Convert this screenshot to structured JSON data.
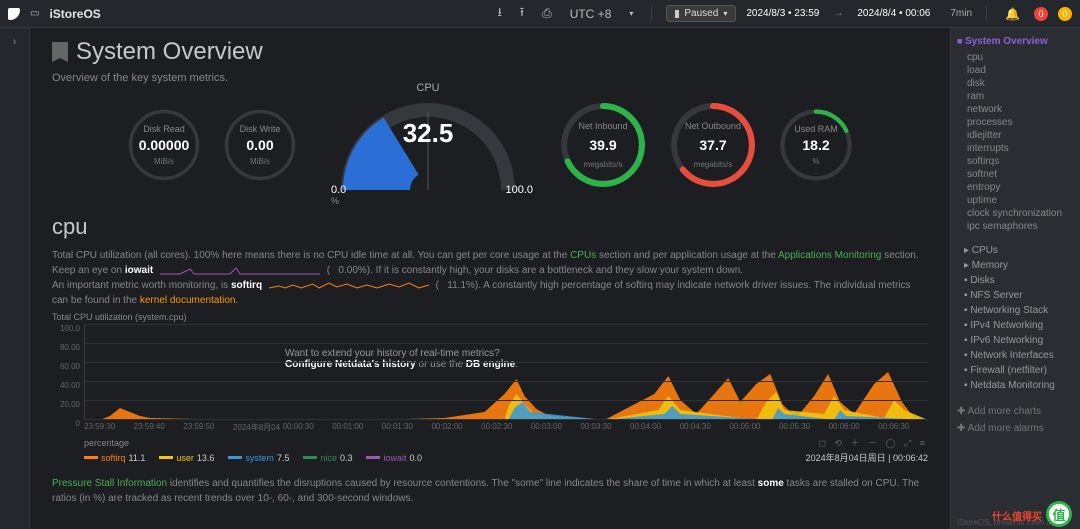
{
  "topbar": {
    "hostname": "iStoreOS",
    "tz_label": "UTC +8",
    "paused_label": "Paused",
    "time_from": "2024/8/3 • 23:59",
    "time_to": "2024/8/4 • 00:06",
    "duration": "7min",
    "alert_red": "0",
    "alert_yellow": "0"
  },
  "page": {
    "title": "System Overview",
    "subtitle": "Overview of the key system metrics."
  },
  "gauges": {
    "disk_read": {
      "label": "Disk Read",
      "value": "0.00000",
      "unit": "MiB/s",
      "pct": 2,
      "color": "#4a4d52"
    },
    "disk_write": {
      "label": "Disk Write",
      "value": "0.00",
      "unit": "MiB/s",
      "pct": 2,
      "color": "#4a4d52"
    },
    "cpu": {
      "label": "CPU",
      "value": "32.5",
      "min": "0.0",
      "max": "100.0",
      "pct": 32.5,
      "fill": "#2b6fd6"
    },
    "net_in": {
      "label": "Net Inbound",
      "value": "39.9",
      "unit": "megabits/s",
      "pct": 68,
      "color": "#2eb24a"
    },
    "net_out": {
      "label": "Net Outbound",
      "value": "37.7",
      "unit": "megabits/s",
      "pct": 64,
      "color": "#e84c3d"
    },
    "ram": {
      "label": "Used RAM",
      "value": "18.2",
      "unit": "%",
      "pct": 18,
      "color": "#2eb24a"
    }
  },
  "cpu_section": {
    "heading": "cpu",
    "text_prefix": "Total CPU utilization (all cores). 100% here means there is no CPU idle time at all. You can get per core usage at the ",
    "link_cpus": "CPUs",
    "text_mid1": " section and per application usage at the ",
    "link_apps": "Applications Monitoring",
    "text_suf1": " section.",
    "line2a": "Keep an eye on ",
    "iowait": "iowait",
    "iowait_val": "0.00%",
    "line2b": "). If it is constantly high, your disks are a bottleneck and they slow your system down.",
    "line3a": "An important metric worth monitoring, is ",
    "softirq": "softirq",
    "softirq_val": "11.1%",
    "line3b": "). A constantly high percentage of softirq may indicate network driver issues. The individual metrics can be found in the ",
    "kernel_docs": "kernel documentation",
    "chart_title": "Total CPU utilization (system.cpu)",
    "sparkline_iowait_color": "#9b59b6",
    "sparkline_softirq_color": "#ff7f0e"
  },
  "chart": {
    "ymax": 100,
    "ytick_step": 20,
    "yticks": [
      "100.0",
      "80.00",
      "60.00",
      "40.00",
      "20.00",
      "0"
    ],
    "xticks": [
      "23:59:30",
      "23:59:40",
      "23:59:50",
      "2024年8月04",
      "00:00:30",
      "00:01:00",
      "00:01:30",
      "00:02:00",
      "00:02:30",
      "00:03:00",
      "00:03:30",
      "00:04:00",
      "00:04:30",
      "00:05:00",
      "00:05:30",
      "00:06:00",
      "00:06:30"
    ],
    "overlay_q": "Want to extend your history of real-time metrics?",
    "overlay_a1": "Configure Netdata's ",
    "overlay_hist": "history",
    "overlay_a2": " or use the ",
    "overlay_db": "DB engine",
    "grid_color": "#2e3136",
    "series": [
      {
        "name": "nice",
        "color": "#2e8b57"
      },
      {
        "name": "user",
        "color": "#f1c40f"
      },
      {
        "name": "system",
        "color": "#3498db"
      },
      {
        "name": "softirq",
        "color": "#ff7f0e"
      },
      {
        "name": "iowait",
        "color": "#9b59b6"
      }
    ],
    "softirq_poly": "0,96 15,96 25,92 35,84 45,88 55,92 65,94 160,96 280,96 360,94 400,88 420,70 432,55 440,72 452,85 465,92 480,96 520,96 570,70 584,52 596,76 612,90 630,70 644,54 656,78 672,60 686,50 698,80 712,94 730,72 744,50 756,78 770,90 790,60 804,48 818,78 830,94 844,96 844,96 0,96",
    "user_poly": "0,96 420,96 424,82 432,70 440,80 450,90 520,96 574,86 584,72 596,86 672,96 682,78 692,68 700,86 740,90 750,72 760,86 800,94 810,76 820,86 844,96 0,96",
    "system_poly": "0,96 424,96 430,84 438,78 446,88 520,96 580,90 588,82 596,90 688,96 694,84 700,90 750,96 756,86 762,92 844,96 0,96",
    "legend_date": "2024年8月04日周日 | 00:06:42",
    "legend_unit": "percentage",
    "legend": [
      {
        "name": "softirq",
        "val": "11.1",
        "color": "#ff7f0e"
      },
      {
        "name": "user",
        "val": "13.6",
        "color": "#f1c40f"
      },
      {
        "name": "system",
        "val": "7.5",
        "color": "#3498db"
      },
      {
        "name": "nice",
        "val": "0.3",
        "color": "#2e8b57"
      },
      {
        "name": "iowait",
        "val": "0.0",
        "color": "#9b59b6"
      }
    ]
  },
  "pressure": {
    "link": "Pressure Stall Information",
    "text1": " identifies and quantifies the disruptions caused by resource contentions. The \"some\" line indicates the share of time in which at least ",
    "some": "some",
    "text2": " tasks are stalled on CPU. The ratios (in %) are tracked as recent trends over 10-, 60-, and 300-second windows."
  },
  "rightnav": {
    "head": "System Overview",
    "subs": [
      "cpu",
      "load",
      "disk",
      "ram",
      "network",
      "processes",
      "idlejitter",
      "interrupts",
      "softirqs",
      "softnet",
      "entropy",
      "uptime",
      "clock synchronization",
      "ipc semaphores"
    ],
    "sections": [
      "CPUs",
      "Memory",
      "Disks",
      "NFS Server",
      "Networking Stack",
      "IPv4 Networking",
      "IPv6 Networking",
      "Network Interfaces",
      "Firewall (netfilter)",
      "Netdata Monitoring"
    ],
    "add_charts": "Add more charts",
    "add_alarms": "Add more alarms",
    "footer": "iStoreOS, presents them in"
  },
  "watermark": {
    "brand": "什么值得买",
    "sub": "SMZDM.COM",
    "mark": "值"
  }
}
